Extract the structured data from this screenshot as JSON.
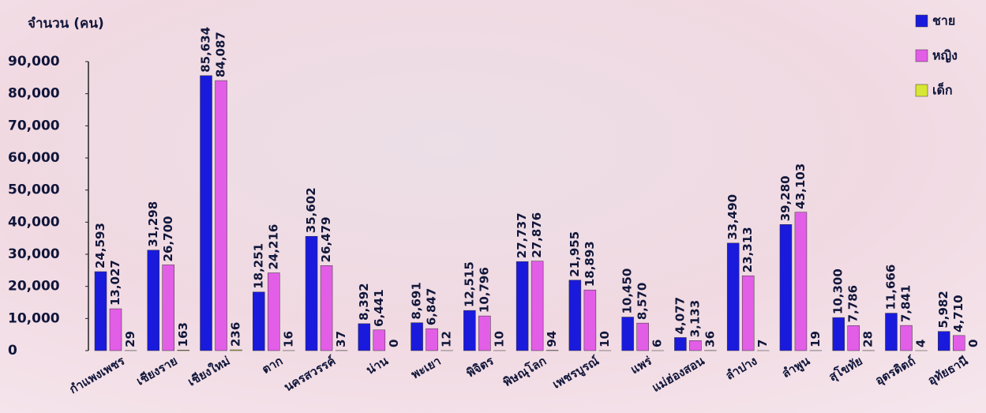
{
  "chart_data": {
    "type": "bar",
    "y_label": "จำนวน (คน)",
    "categories": [
      "กำแพงเพชร",
      "เชียงราย",
      "เชียงใหม่",
      "ตาก",
      "นครสวรรค์",
      "น่าน",
      "พะเยา",
      "พิจิตร",
      "พิษณุโลก",
      "เพชรบูรณ์",
      "แพร่",
      "แม่ฮ่องสอน",
      "ลำปาง",
      "ลำพูน",
      "สุโขทัย",
      "อุตรดิตถ์",
      "อุทัยธานี"
    ],
    "series": [
      {
        "name": "ชาย",
        "color": "#1a1adc",
        "values": [
          24593,
          31298,
          85634,
          18251,
          35602,
          8392,
          8691,
          12515,
          27737,
          21955,
          10450,
          4077,
          33490,
          39280,
          10300,
          11666,
          5982
        ],
        "value_labels": [
          "24,593",
          "31,298",
          "85,634",
          "18,251",
          "35,602",
          "8,392",
          "8,691",
          "12,515",
          "27,737",
          "21,955",
          "10,450",
          "4,077",
          "33,490",
          "39,280",
          "10,300",
          "11,666",
          "5,982"
        ]
      },
      {
        "name": "หญิง",
        "color": "#e25ee6",
        "values": [
          13027,
          26700,
          84087,
          24216,
          26479,
          6441,
          6847,
          10796,
          27876,
          18893,
          8570,
          3133,
          23313,
          43103,
          7786,
          7841,
          4710
        ],
        "value_labels": [
          "13,027",
          "26,700",
          "84,087",
          "24,216",
          "26,479",
          "6,441",
          "6,847",
          "10,796",
          "27,876",
          "18,893",
          "8,570",
          "3,133",
          "23,313",
          "43,103",
          "7,786",
          "7,841",
          "4,710"
        ]
      },
      {
        "name": "เด็ก",
        "color": "#d8e636",
        "values": [
          29,
          163,
          236,
          16,
          37,
          0,
          12,
          10,
          94,
          10,
          6,
          36,
          7,
          19,
          28,
          4,
          0
        ]
      }
    ],
    "ylim": [
      0,
      90000
    ],
    "yticks": [
      0,
      {
        "value": 10000,
        "label": "10,000"
      },
      {
        "value": 20000,
        "label": "20,000"
      },
      {
        "value": 30000,
        "label": "30,000"
      },
      {
        "value": 40000,
        "label": "40,000"
      },
      {
        "value": 50000,
        "label": "50,000"
      },
      {
        "value": 60000,
        "label": "60,000"
      },
      {
        "value": 70000,
        "label": "70,000"
      },
      {
        "value": 80000,
        "label": "80,000"
      },
      {
        "value": 90000,
        "label": "90,000"
      }
    ],
    "legend": "top-right"
  }
}
